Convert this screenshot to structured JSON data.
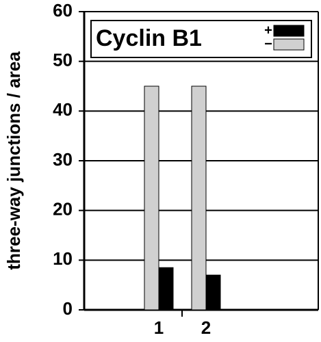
{
  "chart_data": {
    "type": "bar",
    "y_label": "three-way junctions / area",
    "legend_title": "Cyclin B1",
    "categories": [
      "1",
      "2"
    ],
    "series": [
      {
        "name": "+",
        "color": "#000000",
        "values": [
          8.5,
          7
        ]
      },
      {
        "name": "−",
        "color": "#d0d0d0",
        "values": [
          45,
          45
        ]
      }
    ],
    "ylim": [
      0,
      60
    ],
    "yticks": [
      0,
      10,
      20,
      30,
      40,
      50,
      60
    ],
    "grid": true
  }
}
